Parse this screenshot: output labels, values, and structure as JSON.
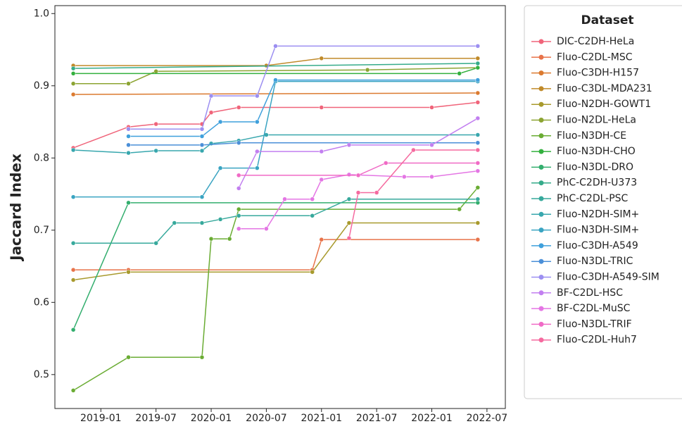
{
  "chart_data": {
    "type": "line",
    "ylabel": "Jaccard Index",
    "legend_title": "Dataset",
    "legend": "outside",
    "xlim": [
      "2018-08",
      "2022-09"
    ],
    "xticks": [
      "2019-01",
      "2019-07",
      "2020-01",
      "2020-07",
      "2021-01",
      "2021-07",
      "2022-01",
      "2022-07"
    ],
    "ylim": [
      0.453,
      1.011
    ],
    "yticks": [
      0.5,
      0.6,
      0.7,
      0.8,
      0.9,
      {
        "value": 1,
        "label": "1.0"
      }
    ],
    "series": [
      {
        "name": "DIC-C2DH-HeLa",
        "color": "#f0647a",
        "x": [
          "2018-10",
          "2019-04",
          "2019-07",
          "2019-12",
          "2020-01",
          "2020-04",
          "2021-01",
          "2022-01",
          "2022-06"
        ],
        "values": [
          0.814,
          0.843,
          0.847,
          0.847,
          0.863,
          0.87,
          0.87,
          0.87,
          0.877
        ]
      },
      {
        "name": "Fluo-C2DL-MSC",
        "color": "#e8734a",
        "x": [
          "2018-10",
          "2019-04",
          "2020-12",
          "2021-01",
          "2022-06"
        ],
        "values": [
          0.645,
          0.645,
          0.645,
          0.687,
          0.687
        ]
      },
      {
        "name": "Fluo-C3DH-H157",
        "color": "#db7a2f",
        "x": [
          "2018-10",
          "2022-06"
        ],
        "values": [
          0.888,
          0.89
        ]
      },
      {
        "name": "Fluo-C3DL-MDA231",
        "color": "#c08a2a",
        "x": [
          "2018-10",
          "2020-07",
          "2021-01",
          "2022-06"
        ],
        "values": [
          0.928,
          0.928,
          0.938,
          0.938
        ]
      },
      {
        "name": "Fluo-N2DH-GOWT1",
        "color": "#a89a2d",
        "x": [
          "2018-10",
          "2019-04",
          "2020-12",
          "2021-04",
          "2022-06"
        ],
        "values": [
          0.631,
          0.642,
          0.642,
          0.71,
          0.71
        ]
      },
      {
        "name": "Fluo-N2DL-HeLa",
        "color": "#8ca432",
        "x": [
          "2018-10",
          "2019-04",
          "2019-07",
          "2021-06",
          "2022-06"
        ],
        "values": [
          0.903,
          0.903,
          0.92,
          0.922,
          0.925
        ]
      },
      {
        "name": "Fluo-N3DH-CE",
        "color": "#6aac33",
        "x": [
          "2018-10",
          "2019-04",
          "2019-12",
          "2020-01",
          "2020-03",
          "2020-04",
          "2022-04",
          "2022-06"
        ],
        "values": [
          0.478,
          0.524,
          0.524,
          0.688,
          0.688,
          0.729,
          0.729,
          0.759
        ]
      },
      {
        "name": "Fluo-N3DH-CHO",
        "color": "#33b03e",
        "x": [
          "2018-10",
          "2022-04",
          "2022-06"
        ],
        "values": [
          0.917,
          0.917,
          0.925
        ]
      },
      {
        "name": "Fluo-N3DL-DRO",
        "color": "#33ae6e",
        "x": [
          "2018-10",
          "2019-04",
          "2022-06"
        ],
        "values": [
          0.562,
          0.738,
          0.738
        ]
      },
      {
        "name": "PhC-C2DH-U373",
        "color": "#35ab8a",
        "x": [
          "2018-10",
          "2022-06"
        ],
        "values": [
          0.924,
          0.931
        ]
      },
      {
        "name": "PhC-C2DL-PSC",
        "color": "#37a99c",
        "x": [
          "2018-10",
          "2019-07",
          "2019-09",
          "2019-12",
          "2020-02",
          "2020-04",
          "2020-12",
          "2021-04",
          "2022-06"
        ],
        "values": [
          0.682,
          0.682,
          0.71,
          0.71,
          0.715,
          0.72,
          0.72,
          0.743,
          0.743
        ]
      },
      {
        "name": "Fluo-N2DH-SIM+",
        "color": "#38a7ae",
        "x": [
          "2018-10",
          "2019-04",
          "2019-07",
          "2019-12",
          "2020-01",
          "2020-04",
          "2020-07",
          "2022-06"
        ],
        "values": [
          0.811,
          0.807,
          0.81,
          0.81,
          0.82,
          0.824,
          0.832,
          0.832
        ]
      },
      {
        "name": "Fluo-N3DH-SIM+",
        "color": "#3aa4c2",
        "x": [
          "2018-10",
          "2019-12",
          "2020-02",
          "2020-06",
          "2020-08",
          "2022-06"
        ],
        "values": [
          0.746,
          0.746,
          0.786,
          0.786,
          0.906,
          0.906
        ]
      },
      {
        "name": "Fluo-C3DH-A549",
        "color": "#3fa0dc",
        "x": [
          "2019-04",
          "2019-12",
          "2020-02",
          "2020-06",
          "2020-08",
          "2022-06"
        ],
        "values": [
          0.83,
          0.83,
          0.85,
          0.85,
          0.908,
          0.908
        ]
      },
      {
        "name": "Fluo-N3DL-TRIC",
        "color": "#4a8fd8",
        "x": [
          "2019-04",
          "2019-12",
          "2020-04",
          "2022-06"
        ],
        "values": [
          0.818,
          0.818,
          0.821,
          0.821
        ]
      },
      {
        "name": "Fluo-C3DH-A549-SIM",
        "color": "#9c8ff1",
        "x": [
          "2019-04",
          "2019-12",
          "2020-01",
          "2020-06",
          "2020-08",
          "2022-06"
        ],
        "values": [
          0.84,
          0.84,
          0.886,
          0.886,
          0.955,
          0.955
        ]
      },
      {
        "name": "BF-C2DL-HSC",
        "color": "#c27ff0",
        "x": [
          "2020-04",
          "2020-06",
          "2021-01",
          "2021-04",
          "2022-01",
          "2022-06"
        ],
        "values": [
          0.758,
          0.809,
          0.809,
          0.818,
          0.818,
          0.855
        ]
      },
      {
        "name": "BF-C2DL-MuSC",
        "color": "#e476e4",
        "x": [
          "2020-04",
          "2020-07",
          "2020-09",
          "2020-12",
          "2021-01",
          "2021-04",
          "2021-10",
          "2022-01",
          "2022-06"
        ],
        "values": [
          0.702,
          0.702,
          0.743,
          0.743,
          0.77,
          0.777,
          0.774,
          0.774,
          0.782
        ]
      },
      {
        "name": "Fluo-N3DL-TRIF",
        "color": "#f06ac6",
        "x": [
          "2020-04",
          "2021-05",
          "2021-08",
          "2022-06"
        ],
        "values": [
          0.776,
          0.776,
          0.793,
          0.793
        ]
      },
      {
        "name": "Fluo-C2DL-Huh7",
        "color": "#f56a9f",
        "x": [
          "2021-04",
          "2021-05",
          "2021-07",
          "2021-11",
          "2022-06"
        ],
        "values": [
          0.689,
          0.752,
          0.752,
          0.811,
          0.811
        ]
      }
    ]
  }
}
